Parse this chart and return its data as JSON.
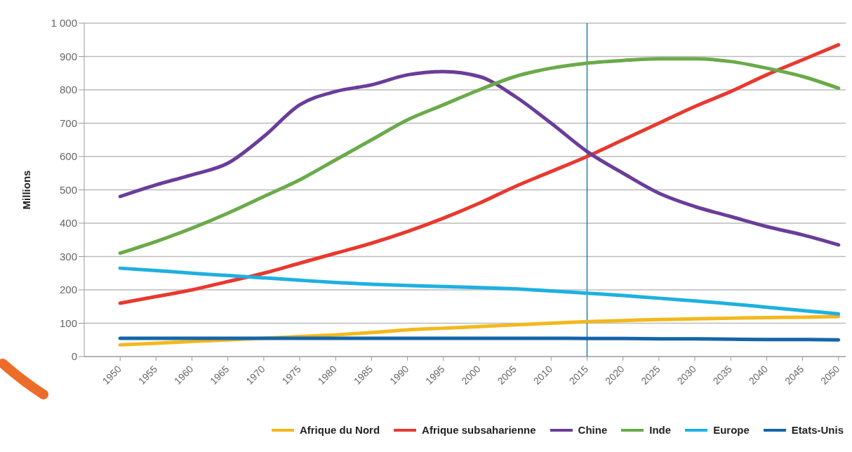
{
  "chart_data": {
    "type": "line",
    "ylabel": "Millions",
    "x": [
      1950,
      1955,
      1960,
      1965,
      1970,
      1975,
      1980,
      1985,
      1990,
      1995,
      2000,
      2005,
      2010,
      2015,
      2020,
      2025,
      2030,
      2035,
      2040,
      2045,
      2050
    ],
    "xlim": [
      1945,
      2051
    ],
    "xticks": [
      1950,
      1955,
      1960,
      1965,
      1970,
      1975,
      1980,
      1985,
      1990,
      1995,
      2000,
      2005,
      2010,
      2015,
      2020,
      2025,
      2030,
      2035,
      2040,
      2045,
      2050
    ],
    "ylim": [
      0,
      1000
    ],
    "yticks": [
      0,
      100,
      200,
      300,
      400,
      500,
      600,
      700,
      800,
      900,
      {
        "value": 1000,
        "label": "1 000"
      }
    ],
    "grid": "y",
    "legend": "bottom",
    "marker": "none",
    "line_style": "solid",
    "ref_lines": [
      {
        "axis": "x",
        "value": 2015,
        "color": "#1a7fa8"
      }
    ],
    "series": [
      {
        "name": "Afrique du Nord",
        "color": "#f4b81c",
        "values": [
          35,
          40,
          45,
          50,
          55,
          60,
          65,
          72,
          80,
          85,
          90,
          95,
          100,
          105,
          108,
          111,
          113,
          115,
          117,
          118,
          120
        ]
      },
      {
        "name": "Afrique subsaharienne",
        "color": "#e8392f",
        "values": [
          160,
          180,
          200,
          225,
          250,
          280,
          310,
          340,
          375,
          415,
          460,
          510,
          555,
          600,
          650,
          700,
          750,
          795,
          845,
          890,
          935
        ]
      },
      {
        "name": "Chine",
        "color": "#6a3d9a",
        "values": [
          480,
          515,
          545,
          580,
          660,
          755,
          795,
          815,
          845,
          855,
          840,
          780,
          700,
          615,
          550,
          490,
          450,
          420,
          390,
          365,
          335
        ]
      },
      {
        "name": "Inde",
        "color": "#6aaa4a",
        "values": [
          310,
          345,
          385,
          430,
          480,
          530,
          590,
          650,
          710,
          755,
          800,
          840,
          865,
          880,
          888,
          893,
          893,
          885,
          865,
          840,
          805
        ]
      },
      {
        "name": "Europe",
        "color": "#1fb0e0",
        "values": [
          265,
          258,
          250,
          243,
          236,
          229,
          222,
          217,
          213,
          210,
          207,
          203,
          197,
          190,
          183,
          175,
          167,
          158,
          148,
          138,
          128
        ]
      },
      {
        "name": "Etats-Unis",
        "color": "#1565a8",
        "values": [
          55,
          55,
          55,
          55,
          55,
          55,
          55,
          55,
          55,
          55,
          55,
          55,
          55,
          54,
          54,
          53,
          53,
          52,
          51,
          51,
          50
        ]
      }
    ]
  }
}
